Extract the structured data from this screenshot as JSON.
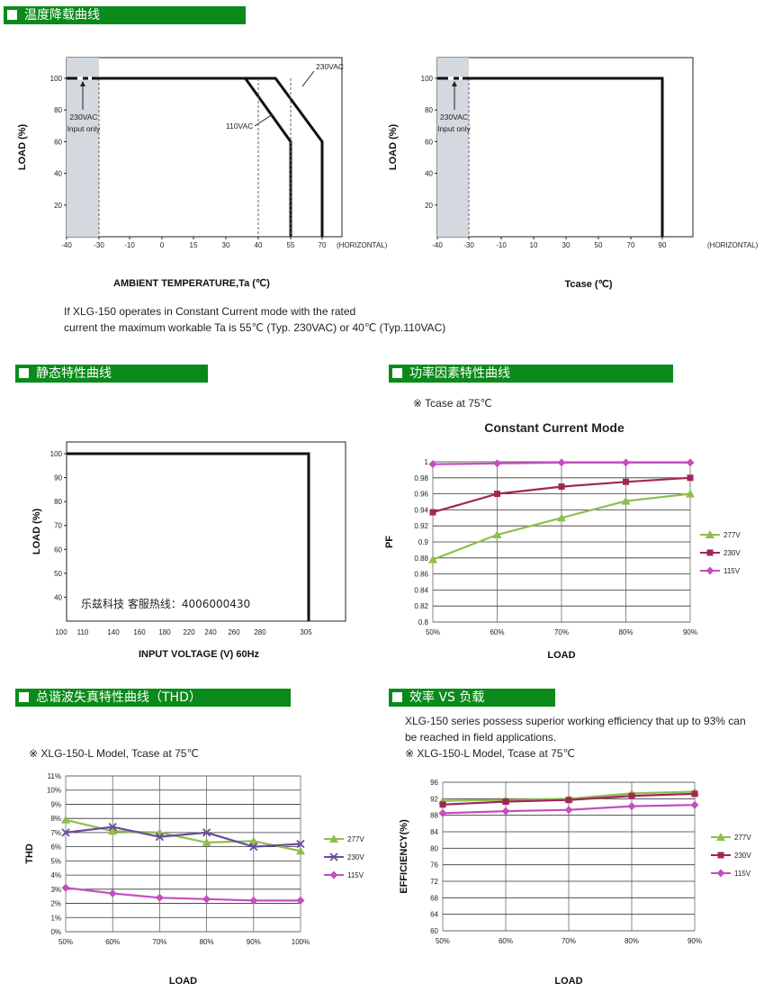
{
  "sections": {
    "derating": "温度降载曲线",
    "static": "静态特性曲线",
    "pf": "功率因素特性曲线",
    "thd": "总谐波失真特性曲线（THD）",
    "eff": "效率 VS 负载"
  },
  "notes": {
    "derating_line1": "If XLG-150 operates in Constant Current mode with the rated",
    "derating_line2": "current the maximum workable Ta is 55℃ (Typ. 230VAC) or 40℃ (Typ.110VAC)",
    "pf_tcase": "※ Tcase at 75℃",
    "eff_line1": "XLG-150 series possess superior working efficiency that up to 93% can",
    "eff_line2": "be reached in field applications.",
    "eff_model": "※ XLG-150-L Model, Tcase at 75℃",
    "thd_model": "※ XLG-150-L Model, Tcase at 75℃",
    "hotline": "乐兹科技 客服热线：4006000430"
  },
  "chart_data": [
    {
      "id": "derating_ta",
      "type": "line",
      "xlabel": "AMBIENT TEMPERATURE,Ta (℃)",
      "ylabel": "LOAD (%)",
      "x_ticks": [
        "-40",
        "-30",
        "-10",
        "0",
        "15",
        "30",
        "40",
        "55",
        "70",
        "(HORIZONTAL)"
      ],
      "y_ticks": [
        "20",
        "40",
        "60",
        "80",
        "100"
      ],
      "series": [
        {
          "name": "230VAC",
          "x": [
            -40,
            48,
            70,
            70
          ],
          "y": [
            100,
            100,
            60,
            0
          ]
        },
        {
          "name": "110VAC",
          "x": [
            -40,
            36,
            55,
            55
          ],
          "y": [
            100,
            100,
            60,
            0
          ]
        }
      ],
      "annotations": [
        "230VAC",
        "110VAC",
        "230VAC",
        "Input only"
      ]
    },
    {
      "id": "derating_tcase",
      "type": "line",
      "xlabel": "Tcase (℃)",
      "ylabel": "LOAD (%)",
      "x_ticks": [
        "-40",
        "-30",
        "-10",
        "10",
        "30",
        "50",
        "70",
        "90",
        "(HORIZONTAL)"
      ],
      "y_ticks": [
        "20",
        "40",
        "60",
        "80",
        "100"
      ],
      "series": [
        {
          "name": "",
          "x": [
            -40,
            90,
            90
          ],
          "y": [
            100,
            100,
            0
          ]
        }
      ],
      "annotations": [
        "230VAC",
        "Input only"
      ]
    },
    {
      "id": "static",
      "type": "line",
      "xlabel": "INPUT VOLTAGE (V) 60Hz",
      "ylabel": "LOAD (%)",
      "x_ticks": [
        "100",
        "110",
        "140",
        "160",
        "180",
        "220",
        "240",
        "260",
        "280",
        "305"
      ],
      "y_ticks": [
        "40",
        "50",
        "60",
        "70",
        "80",
        "90",
        "100"
      ],
      "series": [
        {
          "name": "",
          "x": [
            100,
            305,
            305
          ],
          "y": [
            100,
            100,
            30
          ]
        }
      ]
    },
    {
      "id": "pf",
      "type": "line",
      "title": "Constant Current Mode",
      "xlabel": "LOAD",
      "ylabel": "PF",
      "categories": [
        "50%",
        "60%",
        "70%",
        "80%",
        "90%"
      ],
      "y_ticks": [
        "0.8",
        "0.82",
        "0.84",
        "0.86",
        "0.88",
        "0.9",
        "0.92",
        "0.94",
        "0.96",
        "0.98",
        "1"
      ],
      "ylim": [
        0.8,
        1.0
      ],
      "series": [
        {
          "name": "277V",
          "color": "#8fbe4e",
          "marker": "triangle",
          "values": [
            0.878,
            0.909,
            0.93,
            0.951,
            0.96
          ]
        },
        {
          "name": "230V",
          "color": "#a0265a",
          "marker": "square",
          "values": [
            0.937,
            0.96,
            0.969,
            0.975,
            0.98
          ]
        },
        {
          "name": "115V",
          "color": "#c54ec0",
          "marker": "diamond",
          "values": [
            0.997,
            0.998,
            0.999,
            0.999,
            0.999
          ]
        }
      ]
    },
    {
      "id": "thd",
      "type": "line",
      "xlabel": "LOAD",
      "ylabel": "THD",
      "categories": [
        "50%",
        "60%",
        "70%",
        "80%",
        "90%",
        "100%"
      ],
      "y_ticks": [
        "0%",
        "1%",
        "2%",
        "3%",
        "4%",
        "5%",
        "6%",
        "7%",
        "8%",
        "9%",
        "10%",
        "11%"
      ],
      "ylim": [
        0,
        11
      ],
      "series": [
        {
          "name": "277V",
          "color": "#8fbe4e",
          "marker": "triangle",
          "values": [
            7.9,
            7.1,
            7.0,
            6.3,
            6.4,
            5.7
          ]
        },
        {
          "name": "230V",
          "color": "#6a4c9c",
          "marker": "x",
          "values": [
            7.0,
            7.4,
            6.7,
            7.0,
            6.0,
            6.2
          ]
        },
        {
          "name": "115V",
          "color": "#c54ec0",
          "marker": "diamond",
          "values": [
            3.1,
            2.7,
            2.4,
            2.3,
            2.2,
            2.2
          ]
        }
      ]
    },
    {
      "id": "eff",
      "type": "line",
      "xlabel": "LOAD",
      "ylabel": "EFFICIENCY(%)",
      "categories": [
        "50%",
        "60%",
        "70%",
        "80%",
        "90%"
      ],
      "y_ticks": [
        "60",
        "64",
        "68",
        "72",
        "76",
        "80",
        "84",
        "88",
        "92",
        "96"
      ],
      "ylim": [
        60,
        96
      ],
      "series": [
        {
          "name": "277V",
          "color": "#8fbe4e",
          "marker": "triangle",
          "values": [
            91.5,
            91.7,
            92.0,
            93.3,
            93.7
          ]
        },
        {
          "name": "230V",
          "color": "#a0265a",
          "marker": "square",
          "values": [
            90.6,
            91.3,
            91.7,
            92.7,
            93.2
          ]
        },
        {
          "name": "115V",
          "color": "#c54ec0",
          "marker": "diamond",
          "values": [
            88.5,
            89.0,
            89.3,
            90.2,
            90.5
          ]
        }
      ]
    }
  ]
}
